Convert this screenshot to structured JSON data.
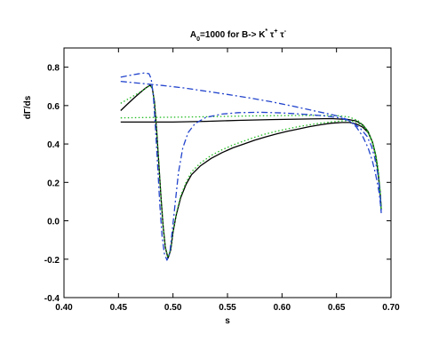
{
  "chart_data": {
    "type": "line",
    "title": {
      "base": "A",
      "sub": "0",
      "middle": "=1000 for B-> K",
      "sup1": "*",
      "tau1": " τ",
      "sup2": "+",
      "tau2": " τ",
      "sup3": "-"
    },
    "xlabel": "s",
    "ylabel": "dΓ/ds",
    "xlim": [
      0.4,
      0.7
    ],
    "ylim": [
      -0.4,
      0.9
    ],
    "xticks": [
      "0.40",
      "0.45",
      "0.50",
      "0.55",
      "0.60",
      "0.65",
      "0.70"
    ],
    "yticks": [
      "-0.4",
      "-0.2",
      "0.0",
      "0.2",
      "0.4",
      "0.6",
      "0.8"
    ],
    "grid": false,
    "legend": "none",
    "series": [
      {
        "color": "#000000",
        "style": "solid",
        "points": [
          [
            0.452,
            0.574
          ],
          [
            0.458,
            0.606
          ],
          [
            0.464,
            0.638
          ],
          [
            0.47,
            0.668
          ],
          [
            0.475,
            0.692
          ],
          [
            0.479,
            0.706
          ],
          [
            0.481,
            0.69
          ],
          [
            0.483,
            0.62
          ],
          [
            0.485,
            0.47
          ],
          [
            0.487,
            0.3
          ],
          [
            0.489,
            0.12
          ],
          [
            0.491,
            -0.03
          ],
          [
            0.493,
            -0.14
          ],
          [
            0.4955,
            -0.195
          ],
          [
            0.498,
            -0.15
          ],
          [
            0.5,
            -0.06
          ],
          [
            0.503,
            0.03
          ],
          [
            0.507,
            0.12
          ],
          [
            0.512,
            0.19
          ],
          [
            0.517,
            0.24
          ],
          [
            0.525,
            0.285
          ],
          [
            0.535,
            0.325
          ],
          [
            0.545,
            0.355
          ],
          [
            0.555,
            0.38
          ],
          [
            0.565,
            0.4
          ],
          [
            0.575,
            0.42
          ],
          [
            0.585,
            0.437
          ],
          [
            0.595,
            0.452
          ],
          [
            0.605,
            0.466
          ],
          [
            0.615,
            0.478
          ],
          [
            0.625,
            0.49
          ],
          [
            0.635,
            0.5
          ],
          [
            0.645,
            0.508
          ],
          [
            0.655,
            0.512
          ],
          [
            0.662,
            0.512
          ],
          [
            0.668,
            0.505
          ],
          [
            0.674,
            0.488
          ],
          [
            0.679,
            0.46
          ],
          [
            0.683,
            0.41
          ],
          [
            0.686,
            0.34
          ],
          [
            0.688,
            0.26
          ],
          [
            0.69,
            0.15
          ],
          [
            0.691,
            0.06
          ]
        ]
      },
      {
        "color": "#000000",
        "style": "solid",
        "points": [
          [
            0.452,
            0.514
          ],
          [
            0.48,
            0.514
          ],
          [
            0.5,
            0.514
          ],
          [
            0.53,
            0.518
          ],
          [
            0.56,
            0.523
          ],
          [
            0.59,
            0.527
          ],
          [
            0.62,
            0.53
          ],
          [
            0.645,
            0.532
          ],
          [
            0.66,
            0.528
          ],
          [
            0.668,
            0.52
          ],
          [
            0.674,
            0.5
          ],
          [
            0.679,
            0.465
          ],
          [
            0.683,
            0.41
          ],
          [
            0.686,
            0.34
          ],
          [
            0.688,
            0.26
          ],
          [
            0.69,
            0.15
          ],
          [
            0.691,
            0.06
          ]
        ]
      },
      {
        "color": "#22bb22",
        "style": "dotted",
        "points": [
          [
            0.452,
            0.612
          ],
          [
            0.46,
            0.638
          ],
          [
            0.468,
            0.664
          ],
          [
            0.475,
            0.69
          ],
          [
            0.479,
            0.705
          ],
          [
            0.481,
            0.69
          ],
          [
            0.483,
            0.62
          ],
          [
            0.485,
            0.47
          ],
          [
            0.487,
            0.3
          ],
          [
            0.489,
            0.12
          ],
          [
            0.491,
            -0.03
          ],
          [
            0.493,
            -0.14
          ],
          [
            0.4955,
            -0.19
          ],
          [
            0.498,
            -0.145
          ],
          [
            0.5,
            -0.055
          ],
          [
            0.503,
            0.035
          ],
          [
            0.507,
            0.13
          ],
          [
            0.512,
            0.2
          ],
          [
            0.517,
            0.255
          ],
          [
            0.525,
            0.3
          ],
          [
            0.535,
            0.34
          ],
          [
            0.545,
            0.37
          ],
          [
            0.555,
            0.395
          ],
          [
            0.565,
            0.415
          ],
          [
            0.575,
            0.435
          ],
          [
            0.585,
            0.452
          ],
          [
            0.595,
            0.466
          ],
          [
            0.605,
            0.479
          ],
          [
            0.615,
            0.49
          ],
          [
            0.625,
            0.5
          ],
          [
            0.635,
            0.508
          ],
          [
            0.645,
            0.515
          ],
          [
            0.655,
            0.52
          ],
          [
            0.662,
            0.521
          ],
          [
            0.668,
            0.515
          ],
          [
            0.674,
            0.495
          ],
          [
            0.679,
            0.462
          ],
          [
            0.683,
            0.41
          ],
          [
            0.686,
            0.34
          ],
          [
            0.688,
            0.26
          ],
          [
            0.69,
            0.15
          ],
          [
            0.691,
            0.06
          ]
        ]
      },
      {
        "color": "#22bb22",
        "style": "dotted",
        "points": [
          [
            0.452,
            0.536
          ],
          [
            0.48,
            0.538
          ],
          [
            0.51,
            0.54
          ],
          [
            0.54,
            0.543
          ],
          [
            0.57,
            0.546
          ],
          [
            0.6,
            0.548
          ],
          [
            0.63,
            0.549
          ],
          [
            0.65,
            0.548
          ],
          [
            0.662,
            0.54
          ],
          [
            0.67,
            0.52
          ],
          [
            0.676,
            0.49
          ],
          [
            0.681,
            0.44
          ],
          [
            0.685,
            0.37
          ],
          [
            0.688,
            0.28
          ],
          [
            0.69,
            0.16
          ],
          [
            0.691,
            0.06
          ]
        ]
      },
      {
        "color": "#2244cc",
        "style": "dashdot",
        "points": [
          [
            0.452,
            0.748
          ],
          [
            0.46,
            0.757
          ],
          [
            0.468,
            0.765
          ],
          [
            0.474,
            0.77
          ],
          [
            0.478,
            0.766
          ],
          [
            0.48,
            0.74
          ],
          [
            0.482,
            0.65
          ],
          [
            0.484,
            0.48
          ],
          [
            0.486,
            0.28
          ],
          [
            0.488,
            0.08
          ],
          [
            0.49,
            -0.08
          ],
          [
            0.492,
            -0.17
          ],
          [
            0.4945,
            -0.205
          ],
          [
            0.497,
            -0.17
          ],
          [
            0.499,
            -0.07
          ],
          [
            0.502,
            0.09
          ],
          [
            0.505,
            0.25
          ],
          [
            0.509,
            0.38
          ],
          [
            0.514,
            0.46
          ],
          [
            0.52,
            0.505
          ],
          [
            0.53,
            0.538
          ],
          [
            0.545,
            0.556
          ],
          [
            0.56,
            0.563
          ],
          [
            0.58,
            0.565
          ],
          [
            0.6,
            0.562
          ],
          [
            0.62,
            0.555
          ],
          [
            0.64,
            0.546
          ],
          [
            0.655,
            0.534
          ],
          [
            0.665,
            0.51
          ],
          [
            0.672,
            0.48
          ],
          [
            0.678,
            0.44
          ],
          [
            0.682,
            0.39
          ],
          [
            0.685,
            0.33
          ],
          [
            0.688,
            0.24
          ],
          [
            0.69,
            0.14
          ],
          [
            0.691,
            0.04
          ]
        ]
      },
      {
        "color": "#2244cc",
        "style": "dashdot",
        "points": [
          [
            0.452,
            0.726
          ],
          [
            0.47,
            0.716
          ],
          [
            0.49,
            0.705
          ],
          [
            0.51,
            0.692
          ],
          [
            0.53,
            0.675
          ],
          [
            0.55,
            0.658
          ],
          [
            0.57,
            0.64
          ],
          [
            0.59,
            0.62
          ],
          [
            0.61,
            0.597
          ],
          [
            0.63,
            0.572
          ],
          [
            0.645,
            0.554
          ],
          [
            0.655,
            0.54
          ],
          [
            0.662,
            0.52
          ],
          [
            0.668,
            0.49
          ],
          [
            0.674,
            0.44
          ],
          [
            0.679,
            0.38
          ],
          [
            0.683,
            0.31
          ],
          [
            0.686,
            0.24
          ],
          [
            0.689,
            0.15
          ],
          [
            0.691,
            0.05
          ]
        ]
      }
    ]
  }
}
